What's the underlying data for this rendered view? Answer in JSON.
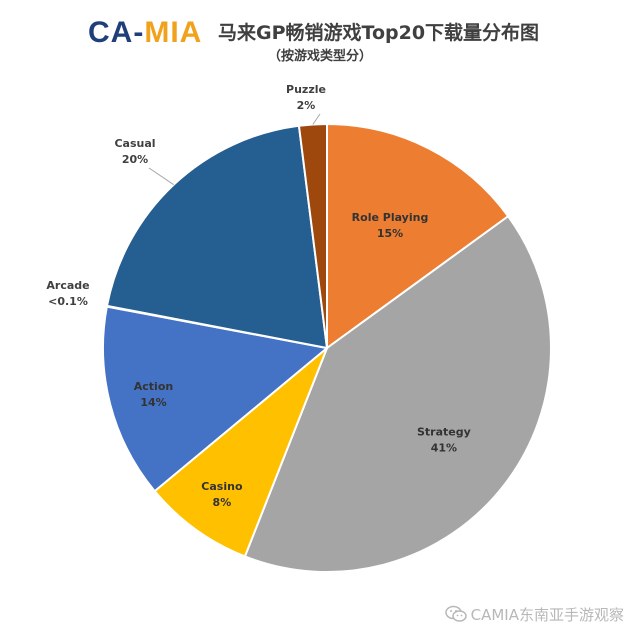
{
  "logo": {
    "part1": "CA",
    "part2": "-",
    "part3": "MIA"
  },
  "header": {
    "title": "马来GP畅销游戏Top20下载量分布图",
    "subtitle": "（按游戏类型分）"
  },
  "watermark": {
    "text": "CAMIA东南亚手游观察",
    "icon": "wechat-icon"
  },
  "colors": {
    "role_playing": "#ed7d31",
    "strategy": "#a5a5a5",
    "casino": "#ffc000",
    "action": "#4472c4",
    "arcade": "#264478",
    "casual": "#255e91",
    "puzzle": "#9e480e"
  },
  "chart_data": {
    "type": "pie",
    "title": "马来GP畅销游戏Top20下载量分布图",
    "subtitle": "（按游戏类型分）",
    "slices": [
      {
        "name": "Role Playing",
        "value": 15,
        "label": "15%",
        "color": "#ed7d31"
      },
      {
        "name": "Strategy",
        "value": 41,
        "label": "41%",
        "color": "#a5a5a5"
      },
      {
        "name": "Casino",
        "value": 8,
        "label": "8%",
        "color": "#ffc000"
      },
      {
        "name": "Action",
        "value": 14,
        "label": "14%",
        "color": "#4472c4"
      },
      {
        "name": "Arcade",
        "value": 0.05,
        "label": "<0.1%",
        "color": "#264478"
      },
      {
        "name": "Casual",
        "value": 20,
        "label": "20%",
        "color": "#255e91"
      },
      {
        "name": "Puzzle",
        "value": 2,
        "label": "2%",
        "color": "#9e480e"
      }
    ],
    "legend": "none"
  }
}
